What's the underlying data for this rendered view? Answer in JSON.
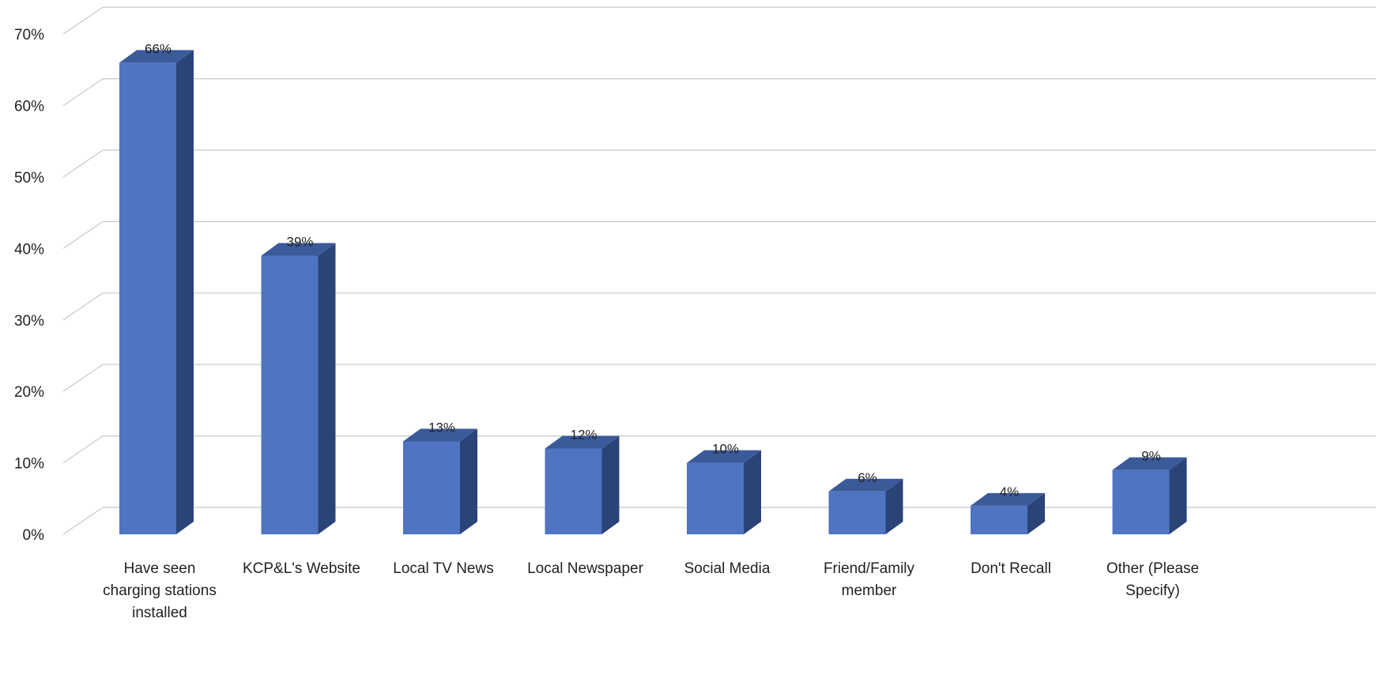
{
  "chart_data": {
    "type": "bar",
    "title": "",
    "xlabel": "",
    "ylabel": "",
    "ylim": [
      0,
      70
    ],
    "yticks": [
      "0%",
      "10%",
      "20%",
      "30%",
      "40%",
      "50%",
      "60%",
      "70%"
    ],
    "grid": true,
    "three_d": true,
    "categories": [
      [
        "Have seen",
        "charging stations",
        "installed"
      ],
      [
        "KCP&L's Website"
      ],
      [
        "Local TV News"
      ],
      [
        "Local Newspaper"
      ],
      [
        "Social Media"
      ],
      [
        "Friend/Family",
        "member"
      ],
      [
        "Don't Recall"
      ],
      [
        "Other (Please",
        "Specify)"
      ]
    ],
    "values": [
      66,
      39,
      13,
      12,
      10,
      6,
      4,
      9
    ],
    "data_labels": [
      "66%",
      "39%",
      "13%",
      "12%",
      "10%",
      "6%",
      "4%",
      "9%"
    ],
    "colors": {
      "bar_front": "#4f74c2",
      "bar_side": "#2a4478",
      "bar_top": "#3b5a9a",
      "grid": "#c8c8c8",
      "text": "#222222"
    }
  }
}
